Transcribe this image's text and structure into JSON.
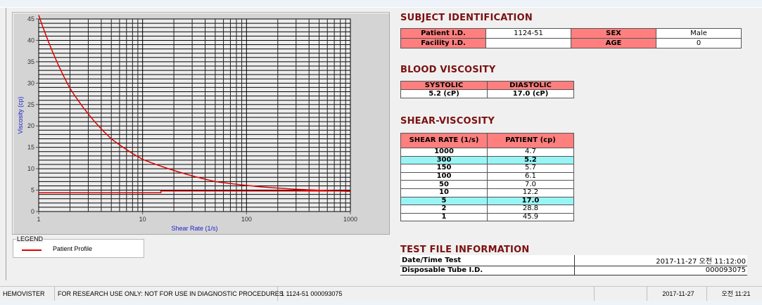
{
  "chart_data": {
    "type": "line",
    "xlabel": "Shear Rate (1/s)",
    "ylabel": "Viscosity (cp)",
    "xscale": "log",
    "xlim": [
      1,
      1000
    ],
    "ylim": [
      0,
      45
    ],
    "xticks": [
      "1",
      "10",
      "100",
      "1000"
    ],
    "yticks": [
      "0",
      "5",
      "10",
      "15",
      "20",
      "25",
      "30",
      "35",
      "40",
      "45"
    ],
    "grid": true,
    "legend_position": "bottom-left",
    "series": [
      {
        "name": "Patient Profile",
        "color": "#e00000",
        "x": [
          1,
          2,
          5,
          10,
          50,
          100,
          150,
          300,
          1000
        ],
        "y": [
          45.9,
          28.8,
          17.0,
          12.2,
          7.0,
          6.1,
          5.7,
          5.2,
          4.7
        ]
      },
      {
        "color": "#e00000",
        "x": [
          1,
          15,
          15,
          1000
        ],
        "y": [
          4.4,
          4.4,
          4.8,
          4.8
        ]
      }
    ]
  },
  "legend": {
    "title": "LEGEND",
    "items": [
      "Patient Profile"
    ]
  },
  "subject": {
    "title": "SUBJECT IDENTIFICATION",
    "patient_id_label": "Patient I.D.",
    "patient_id": "1124-51",
    "sex_label": "SEX",
    "sex": "Male",
    "facility_label": "Facility I.D.",
    "facility": "",
    "age_label": "AGE",
    "age": "0"
  },
  "blood": {
    "title": "BLOOD VISCOSITY",
    "systolic_label": "SYSTOLIC",
    "diastolic_label": "DIASTOLIC",
    "systolic": "5.2 (cP)",
    "diastolic": "17.0 (cP)"
  },
  "shear": {
    "title": "SHEAR-VISCOSITY",
    "col1": "SHEAR RATE (1/s)",
    "col2": "PATIENT (cp)",
    "highlight_color": "#99f5f5",
    "rows": [
      [
        "1000",
        "4.7"
      ],
      [
        "300",
        "5.2"
      ],
      [
        "150",
        "5.7"
      ],
      [
        "100",
        "6.1"
      ],
      [
        "50",
        "7.0"
      ],
      [
        "10",
        "12.2"
      ],
      [
        "5",
        "17.0"
      ],
      [
        "2",
        "28.8"
      ],
      [
        "1",
        "45.9"
      ]
    ]
  },
  "testfile": {
    "title": "TEST FILE INFORMATION",
    "date_label": "Date/Time Test",
    "date": "2017-11-27   오전 11:12:00",
    "tube_label": "Disposable Tube I.D.",
    "tube": "000093075"
  },
  "status": [
    "HEMOVISTER",
    "FOR RESEARCH USE ONLY: NOT FOR USE IN DIAGNOSTIC PROCEDURES",
    "1  1124-51  000093075",
    "",
    "2017-11-27",
    "오전 11:21"
  ]
}
